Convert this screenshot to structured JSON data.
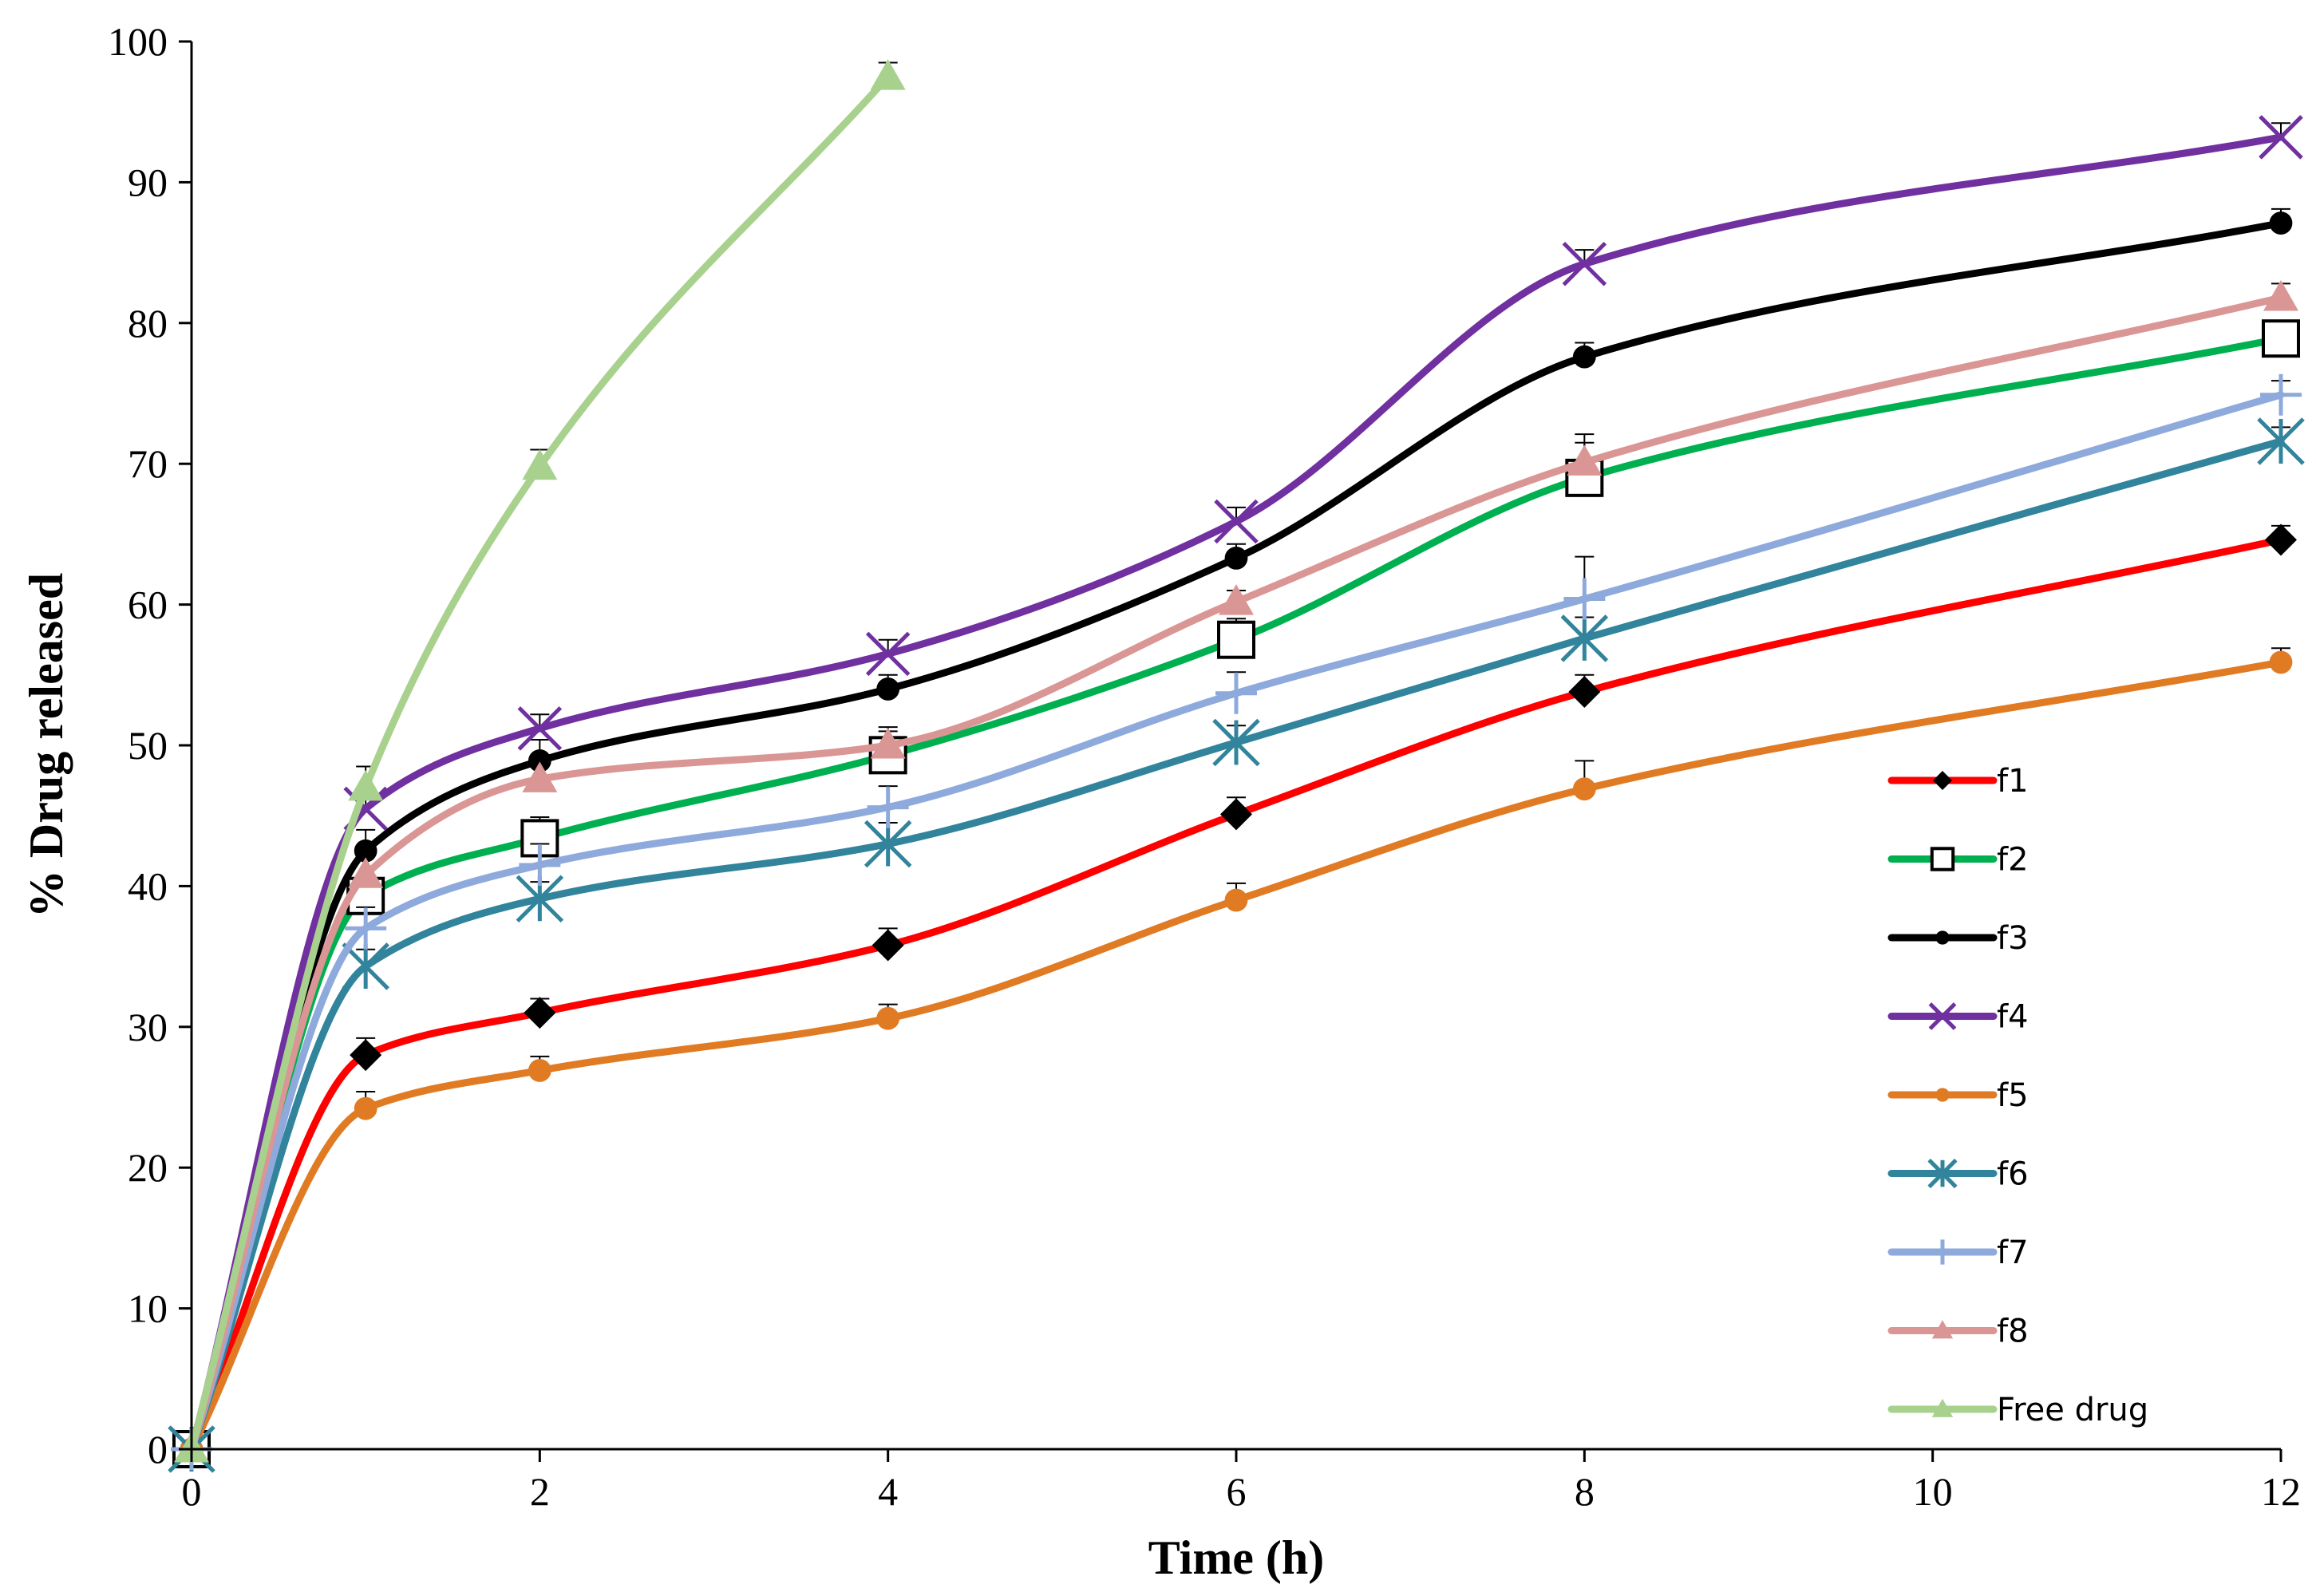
{
  "chart_data": {
    "type": "line",
    "title": "",
    "xlabel": "Time (h)",
    "ylabel": "% Drug released",
    "xlim": [
      0,
      12
    ],
    "ylim": [
      0,
      100
    ],
    "x_ticks": [
      0,
      2,
      4,
      6,
      8,
      10,
      12
    ],
    "y_ticks": [
      0,
      10,
      20,
      30,
      40,
      50,
      60,
      70,
      80,
      90,
      100
    ],
    "grid": false,
    "legend_position": "bottom-right",
    "series": [
      {
        "name": "f1",
        "color": "#ff0000",
        "marker": "diamond",
        "marker_color": "#000000",
        "x": [
          0,
          1,
          2,
          4,
          6,
          8,
          12
        ],
        "y": [
          0,
          28.0,
          31.0,
          35.8,
          45.1,
          53.8,
          64.6
        ],
        "err": [
          0,
          1.2,
          1.0,
          1.2,
          1.2,
          1.2,
          1.0
        ]
      },
      {
        "name": "f2",
        "color": "#00b050",
        "marker": "square-open",
        "marker_color": "#000000",
        "x": [
          0,
          1,
          2,
          4,
          6,
          8,
          12
        ],
        "y": [
          0,
          39.3,
          43.4,
          49.3,
          57.5,
          69.0,
          78.9
        ],
        "err": [
          0,
          1.5,
          1.5,
          2.0,
          1.5,
          2.5,
          1.0
        ]
      },
      {
        "name": "f3",
        "color": "#000000",
        "marker": "circle",
        "marker_color": "#000000",
        "x": [
          0,
          1,
          2,
          4,
          6,
          8,
          12
        ],
        "y": [
          0,
          42.5,
          48.9,
          54.0,
          63.3,
          77.6,
          87.1
        ],
        "err": [
          0,
          1.5,
          1.5,
          1.0,
          1.0,
          1.0,
          1.0
        ]
      },
      {
        "name": "f4",
        "color": "#7030a0",
        "marker": "x",
        "marker_color": "#7030a0",
        "x": [
          0,
          1,
          2,
          4,
          6,
          8,
          12
        ],
        "y": [
          0,
          45.5,
          51.2,
          56.5,
          65.9,
          84.2,
          93.2
        ],
        "err": [
          0,
          1.5,
          1.0,
          1.0,
          1.0,
          1.0,
          1.0
        ]
      },
      {
        "name": "f5",
        "color": "#e07b24",
        "marker": "circle",
        "marker_color": "#e07b24",
        "x": [
          0,
          1,
          2,
          4,
          6,
          8,
          12
        ],
        "y": [
          0,
          24.2,
          26.9,
          30.6,
          39.0,
          46.9,
          55.9
        ],
        "err": [
          0,
          1.2,
          1.0,
          1.0,
          1.2,
          2.0,
          1.0
        ]
      },
      {
        "name": "f6",
        "color": "#31849b",
        "marker": "asterisk",
        "marker_color": "#31849b",
        "x": [
          0,
          1,
          2,
          4,
          6,
          8,
          12
        ],
        "y": [
          0,
          34.3,
          39.1,
          43.0,
          50.2,
          57.6,
          71.6
        ],
        "err": [
          0,
          1.2,
          1.2,
          1.5,
          1.2,
          1.5,
          1.0
        ]
      },
      {
        "name": "f7",
        "color": "#8ea9db",
        "marker": "plus",
        "marker_color": "#8ea9db",
        "x": [
          0,
          1,
          2,
          4,
          6,
          8,
          12
        ],
        "y": [
          0,
          37.0,
          41.5,
          45.6,
          53.7,
          60.4,
          74.9
        ],
        "err": [
          0,
          1.5,
          1.5,
          1.5,
          1.5,
          3.0,
          1.0
        ]
      },
      {
        "name": "f8",
        "color": "#d99694",
        "marker": "triangle",
        "marker_color": "#d99694",
        "x": [
          0,
          1,
          2,
          4,
          6,
          8,
          12
        ],
        "y": [
          0,
          40.8,
          47.6,
          50.0,
          60.2,
          70.1,
          81.8
        ],
        "err": [
          0,
          1.5,
          1.5,
          1.0,
          0.8,
          2.0,
          1.0
        ]
      },
      {
        "name": "Free drug",
        "color": "#a9d18e",
        "marker": "triangle",
        "marker_color": "#a9d18e",
        "x": [
          0,
          1,
          2,
          4
        ],
        "y": [
          0,
          47.0,
          69.8,
          97.5
        ],
        "err": [
          0,
          1.5,
          1.2,
          1.0
        ]
      }
    ]
  }
}
